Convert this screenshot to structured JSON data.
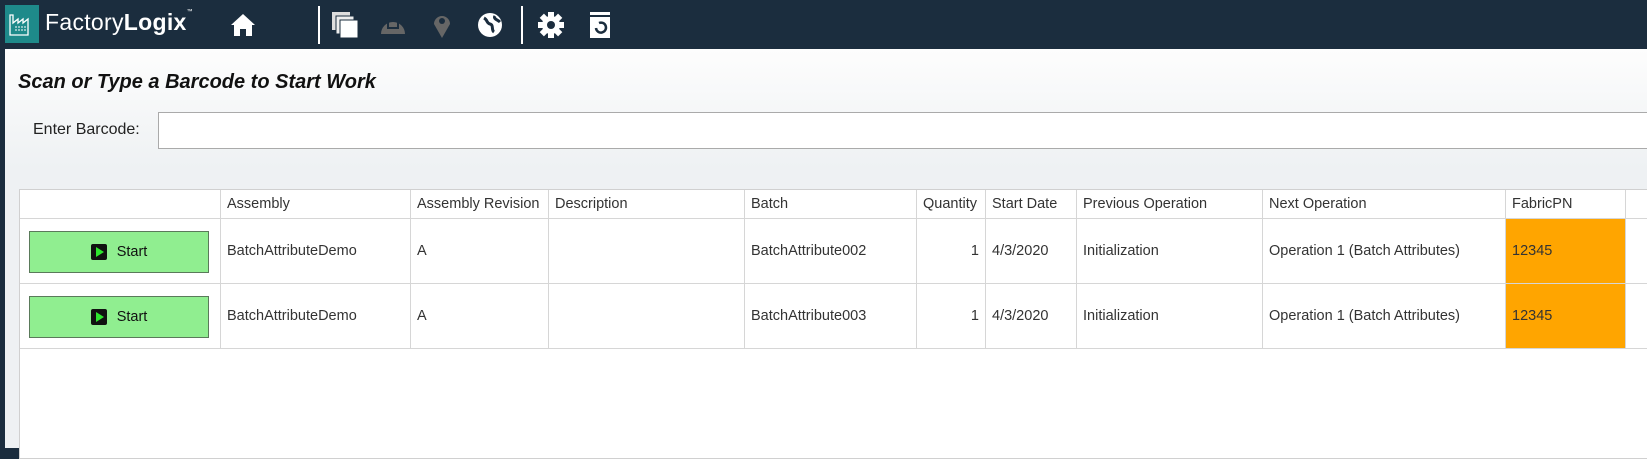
{
  "header": {
    "brand_light": "Factory",
    "brand_bold": "Logix",
    "trademark": "™",
    "icons": [
      "home-icon",
      "documents-icon",
      "hardhat-icon",
      "location-pin-icon",
      "globe-icon",
      "gear-icon",
      "refresh-document-icon"
    ]
  },
  "main": {
    "title": "Scan or Type a Barcode to Start Work",
    "barcode_label": "Enter Barcode:",
    "barcode_value": ""
  },
  "table": {
    "columns": [
      "",
      "Assembly",
      "Assembly Revision",
      "Description",
      "Batch",
      "Quantity",
      "Start Date",
      "Previous Operation",
      "Next Operation",
      "FabricPN"
    ],
    "rows": [
      {
        "action": "Start",
        "assembly": "BatchAttributeDemo",
        "revision": "A",
        "description": "",
        "batch": "BatchAttribute002",
        "quantity": "1",
        "start_date": "4/3/2020",
        "previous_operation": "Initialization",
        "next_operation": "Operation 1 (Batch Attributes)",
        "fabricpn": "12345"
      },
      {
        "action": "Start",
        "assembly": "BatchAttributeDemo",
        "revision": "A",
        "description": "",
        "batch": "BatchAttribute003",
        "quantity": "1",
        "start_date": "4/3/2020",
        "previous_operation": "Initialization",
        "next_operation": "Operation 1 (Batch Attributes)",
        "fabricpn": "12345"
      }
    ]
  },
  "colors": {
    "header_bg": "#1b2d3e",
    "start_button": "#90ee90",
    "highlight_cell": "#ffa500",
    "logo_bg": "#1e8a8a"
  }
}
